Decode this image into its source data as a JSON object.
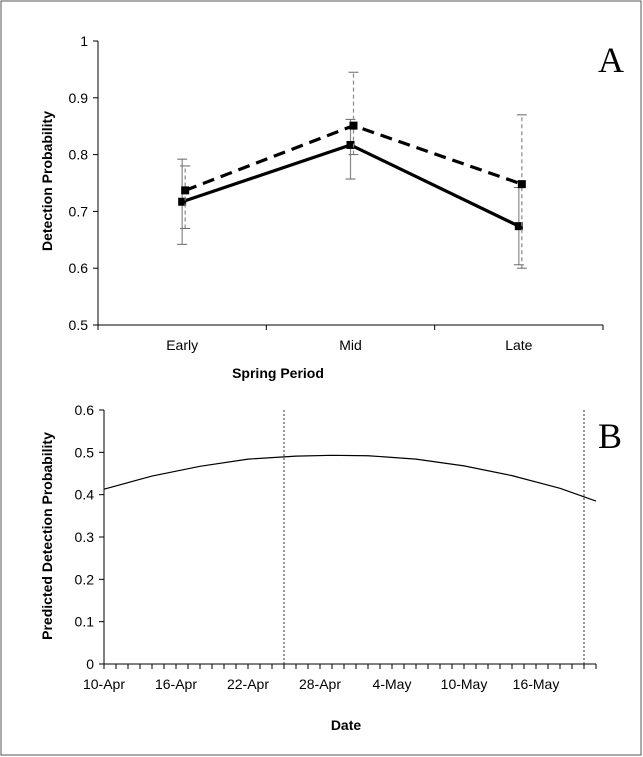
{
  "chart_data": [
    {
      "panel": "A",
      "type": "line",
      "title": "",
      "xlabel": "Spring Period",
      "ylabel": "Detection Probability",
      "categories": [
        "Early",
        "Mid",
        "Late"
      ],
      "ylim": [
        0.5,
        1
      ],
      "yticks": [
        "0.5",
        "0.6",
        "0.7",
        "0.8",
        "0.9",
        "1"
      ],
      "grid": false,
      "legend": "none",
      "series": [
        {
          "style": "solid",
          "color": "#000000",
          "values": [
            0.717,
            0.817,
            0.674
          ],
          "error_low": [
            0.642,
            0.757,
            0.606
          ],
          "error_high": [
            0.792,
            0.862,
            0.742
          ]
        },
        {
          "style": "dashed",
          "color": "#000000",
          "values": [
            0.737,
            0.851,
            0.748
          ],
          "error_low": [
            0.67,
            0.8,
            0.6
          ],
          "error_high": [
            0.78,
            0.945,
            0.87
          ]
        }
      ]
    },
    {
      "panel": "B",
      "type": "line",
      "title": "",
      "xlabel": "Date",
      "ylabel": "Predicted Detection Probability",
      "x_start": "10-Apr",
      "x_end": "21-May",
      "xtick_labels": [
        "10-Apr",
        "16-Apr",
        "22-Apr",
        "28-Apr",
        "4-May",
        "10-May",
        "16-May"
      ],
      "ylim": [
        0,
        0.6
      ],
      "yticks": [
        "0",
        "0.1",
        "0.2",
        "0.3",
        "0.4",
        "0.5",
        "0.6"
      ],
      "grid": false,
      "legend": "none",
      "vertical_lines": [
        "25-Apr",
        "20-May"
      ],
      "series": [
        {
          "style": "solid",
          "color": "#000000",
          "x": [
            "10-Apr",
            "14-Apr",
            "18-Apr",
            "22-Apr",
            "26-Apr",
            "29-Apr",
            "2-May",
            "6-May",
            "10-May",
            "14-May",
            "18-May",
            "21-May"
          ],
          "y": [
            0.413,
            0.444,
            0.467,
            0.484,
            0.491,
            0.493,
            0.492,
            0.484,
            0.468,
            0.445,
            0.415,
            0.385
          ]
        }
      ]
    }
  ]
}
